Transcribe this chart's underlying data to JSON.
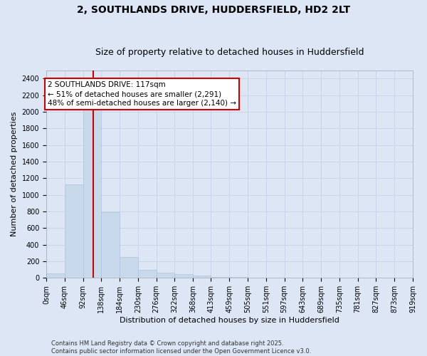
{
  "title_line1": "2, SOUTHLANDS DRIVE, HUDDERSFIELD, HD2 2LT",
  "title_line2": "Size of property relative to detached houses in Huddersfield",
  "xlabel": "Distribution of detached houses by size in Huddersfield",
  "ylabel": "Number of detached properties",
  "bar_color": "#c9d9ec",
  "bar_edge_color": "#afc4dd",
  "grid_color": "#c8d4e8",
  "background_color": "#dce6f5",
  "fig_background": "#dce6f5",
  "vline_x": 117,
  "vline_color": "#cc0000",
  "annotation_text": "2 SOUTHLANDS DRIVE: 117sqm\n← 51% of detached houses are smaller (2,291)\n48% of semi-detached houses are larger (2,140) →",
  "annotation_box_facecolor": "#ffffff",
  "annotation_box_edge": "#cc0000",
  "bin_edges": [
    0,
    46,
    92,
    138,
    184,
    230,
    276,
    322,
    368,
    413,
    459,
    505,
    551,
    597,
    643,
    689,
    735,
    781,
    827,
    873,
    919
  ],
  "bar_heights": [
    55,
    1130,
    2050,
    790,
    250,
    95,
    65,
    50,
    25,
    15,
    8,
    4,
    2,
    1,
    1,
    1,
    0,
    0,
    0,
    0
  ],
  "ylim": [
    0,
    2500
  ],
  "yticks": [
    0,
    200,
    400,
    600,
    800,
    1000,
    1200,
    1400,
    1600,
    1800,
    2000,
    2200,
    2400
  ],
  "footer_text": "Contains HM Land Registry data © Crown copyright and database right 2025.\nContains public sector information licensed under the Open Government Licence v3.0.",
  "title_fontsize": 10,
  "subtitle_fontsize": 9,
  "ylabel_fontsize": 8,
  "xlabel_fontsize": 8,
  "tick_fontsize": 7,
  "annotation_fontsize": 7.5,
  "footer_fontsize": 6
}
